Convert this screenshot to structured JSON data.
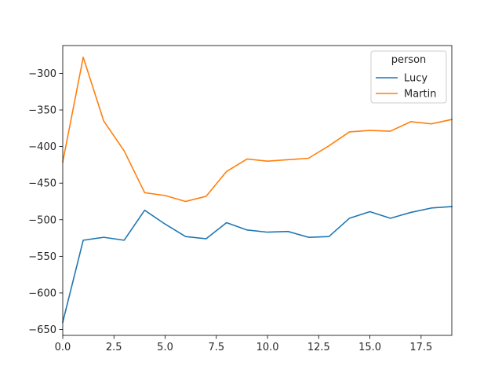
{
  "chart_data": {
    "type": "line",
    "title": "",
    "xlabel": "",
    "ylabel": "",
    "x": [
      0,
      1,
      2,
      3,
      4,
      5,
      6,
      7,
      8,
      9,
      10,
      11,
      12,
      13,
      14,
      15,
      16,
      17,
      18,
      19
    ],
    "xlim": [
      0,
      19
    ],
    "ylim": [
      -658,
      -262
    ],
    "xticks": [
      0,
      2.5,
      5,
      7.5,
      10,
      12.5,
      15,
      17.5
    ],
    "xtick_labels": [
      "0.0",
      "2.5",
      "5.0",
      "7.5",
      "10.0",
      "12.5",
      "15.0",
      "17.5"
    ],
    "yticks": [
      -650,
      -600,
      -550,
      -500,
      -450,
      -400,
      -350,
      -300
    ],
    "ytick_labels": [
      "−650",
      "−600",
      "−550",
      "−500",
      "−450",
      "−400",
      "−350",
      "−300"
    ],
    "grid": false,
    "legend": {
      "title": "person",
      "placement": "top-right"
    },
    "series": [
      {
        "name": "Lucy",
        "color": "#1f77b4",
        "values": [
          -640,
          -528,
          -524,
          -528,
          -487,
          -506,
          -523,
          -526,
          -504,
          -514,
          -517,
          -516,
          -524,
          -523,
          -498,
          -489,
          -498,
          -490,
          -484,
          -482
        ]
      },
      {
        "name": "Martin",
        "color": "#ff7f0e",
        "values": [
          -421,
          -278,
          -365,
          -406,
          -463,
          -467,
          -475,
          -468,
          -434,
          -417,
          -420,
          -418,
          -416,
          -399,
          -380,
          -378,
          -379,
          -366,
          -369,
          -363
        ]
      }
    ]
  }
}
